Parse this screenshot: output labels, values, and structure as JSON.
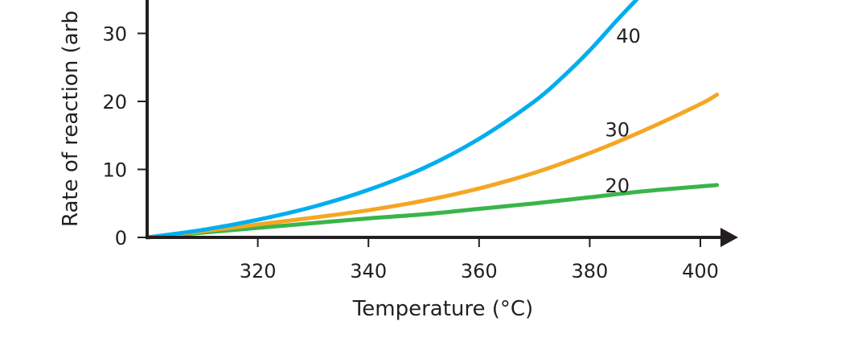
{
  "chart_data": {
    "type": "line",
    "title": "",
    "xlabel": "Temperature (°C)",
    "ylabel": "Rate of reaction (arb",
    "xlim": [
      300,
      403
    ],
    "ylim": [
      0,
      35
    ],
    "x_ticks": [
      320,
      340,
      360,
      380,
      400
    ],
    "y_ticks": [
      0,
      10,
      20,
      30
    ],
    "grid": false,
    "legend": "none",
    "series": [
      {
        "name": "20",
        "color": "#39b54a",
        "x": [
          300,
          310,
          320,
          330,
          340,
          350,
          360,
          370,
          380,
          390,
          400,
          403
        ],
        "y": [
          0,
          0.7,
          1.4,
          2.1,
          2.8,
          3.4,
          4.2,
          5.0,
          5.9,
          6.8,
          7.5,
          7.7
        ]
      },
      {
        "name": "30",
        "color": "#f5a623",
        "x": [
          300,
          310,
          320,
          330,
          340,
          350,
          360,
          370,
          380,
          390,
          400,
          403
        ],
        "y": [
          0,
          0.9,
          1.9,
          2.9,
          4.0,
          5.4,
          7.2,
          9.5,
          12.4,
          15.8,
          19.6,
          21.0
        ]
      },
      {
        "name": "40",
        "color": "#00aeef",
        "x": [
          300,
          310,
          320,
          330,
          340,
          350,
          360,
          370,
          375,
          380,
          385,
          388.5
        ],
        "y": [
          0,
          1.1,
          2.6,
          4.5,
          7.0,
          10.2,
          14.5,
          20.0,
          23.5,
          27.5,
          32.0,
          35.0
        ]
      }
    ],
    "series_labels": [
      {
        "series": "20",
        "text": "20",
        "x": 385,
        "y": 7.7
      },
      {
        "series": "30",
        "text": "30",
        "x": 385,
        "y": 15.9
      },
      {
        "series": "40",
        "text": "40",
        "x": 387,
        "y": 29.7
      }
    ]
  }
}
